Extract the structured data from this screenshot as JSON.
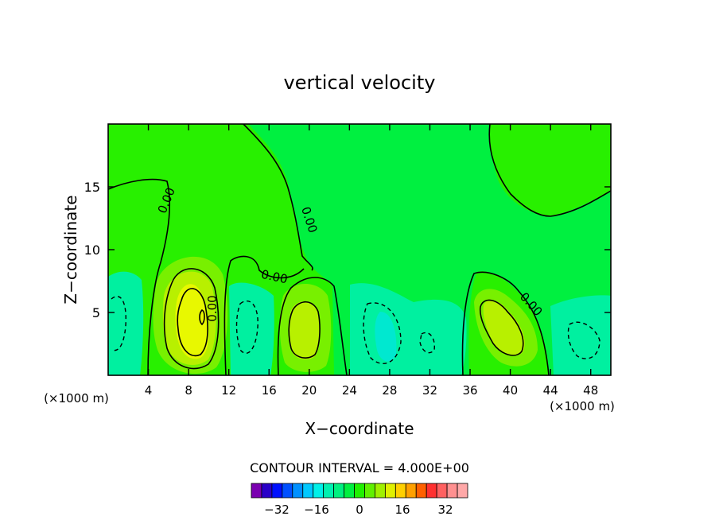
{
  "chart_data": {
    "type": "heatmap",
    "title": "vertical velocity",
    "xlabel": "X−coordinate",
    "ylabel": "Z−coordinate",
    "x_unit_left": "(×1000 m)",
    "x_unit_right": "(×1000 m)",
    "xlim": [
      0,
      50
    ],
    "ylim": [
      0,
      20
    ],
    "x_ticks": [
      "4",
      "8",
      "12",
      "16",
      "20",
      "24",
      "28",
      "32",
      "36",
      "40",
      "44",
      "48"
    ],
    "y_ticks": [
      "5",
      "10",
      "15"
    ],
    "contour_labels": [
      "0.00",
      "0.00",
      "0.00",
      "0.00",
      "0.00"
    ],
    "contour_interval_text": "CONTOUR INTERVAL = 4.000E+00",
    "colorbar": {
      "tick_labels": [
        "−32",
        "−16",
        "0",
        "16",
        "32"
      ],
      "colors": [
        "#7a00b0",
        "#2a00c8",
        "#0010ff",
        "#0050ff",
        "#0090ff",
        "#00c8ff",
        "#00f0e8",
        "#00f0b0",
        "#00f080",
        "#00f040",
        "#20f000",
        "#60f000",
        "#a0f000",
        "#e0f000",
        "#ffd000",
        "#ffa000",
        "#ff6000",
        "#ff3030",
        "#ff6060",
        "#ff9090",
        "#ffa8a8"
      ]
    },
    "cells": [
      {
        "region": "background",
        "value": 2
      },
      {
        "region": "updraft",
        "center": [
          9,
          4.5
        ],
        "value": 16
      },
      {
        "region": "updraft",
        "center": [
          19.5,
          4
        ],
        "value": 12
      },
      {
        "region": "updraft",
        "center": [
          39.5,
          3.5
        ],
        "value": 12
      },
      {
        "region": "downdraft",
        "center": [
          1.5,
          4.5
        ],
        "value": -8
      },
      {
        "region": "downdraft",
        "center": [
          14,
          4
        ],
        "value": -8
      },
      {
        "region": "downdraft",
        "center": [
          28,
          3
        ],
        "value": -12
      },
      {
        "region": "downdraft",
        "center": [
          46,
          3.5
        ],
        "value": -8
      }
    ]
  }
}
